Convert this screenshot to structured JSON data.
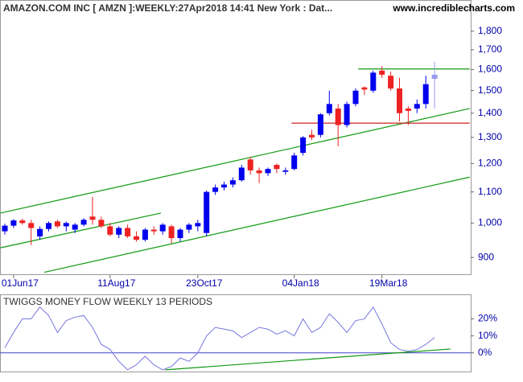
{
  "header": {
    "title": "AMAZON.COM INC [ AMZN ]:WEEKLY:27Apr2018 14:41 New York : Dat...",
    "site": "www.incrediblecharts.com"
  },
  "chart_data": [
    {
      "type": "candlestick",
      "log_scale": true,
      "categories": [
        null,
        "01Jun17",
        null,
        null,
        null,
        null,
        null,
        null,
        null,
        null,
        null,
        null,
        "11Aug17",
        null,
        null,
        null,
        null,
        null,
        null,
        null,
        null,
        null,
        "23Oct17",
        null,
        null,
        null,
        null,
        null,
        null,
        null,
        null,
        null,
        null,
        "04Jan18",
        null,
        null,
        null,
        null,
        null,
        null,
        null,
        null,
        null,
        "19Mar18",
        null,
        null,
        null,
        null,
        null,
        null
      ],
      "open": [
        975,
        992,
        1008,
        1000,
        960,
        982,
        1005,
        990,
        980,
        995,
        1020,
        1010,
        990,
        965,
        985,
        960,
        950,
        980,
        975,
        990,
        955,
        980,
        990,
        970,
        1100,
        1115,
        1125,
        1140,
        1215,
        1175,
        1165,
        1195,
        1170,
        1180,
        1240,
        1310,
        1310,
        1400,
        1420,
        1350,
        1440,
        1515,
        1500,
        1595,
        1570,
        1510,
        1420,
        1420,
        1440,
        1575
      ],
      "high": [
        998,
        1012,
        1014,
        1010,
        990,
        1005,
        1010,
        1005,
        1000,
        1015,
        1083,
        1020,
        1000,
        990,
        995,
        975,
        985,
        990,
        1000,
        995,
        985,
        1000,
        1010,
        1105,
        1125,
        1135,
        1150,
        1195,
        1225,
        1185,
        1185,
        1200,
        1185,
        1240,
        1305,
        1330,
        1400,
        1500,
        1440,
        1450,
        1510,
        1520,
        1595,
        1617,
        1590,
        1560,
        1430,
        1460,
        1570,
        1638
      ],
      "low": [
        965,
        985,
        995,
        935,
        950,
        975,
        985,
        975,
        970,
        990,
        995,
        985,
        960,
        955,
        955,
        945,
        945,
        965,
        965,
        940,
        945,
        970,
        975,
        960,
        1090,
        1105,
        1115,
        1135,
        1160,
        1130,
        1155,
        1165,
        1160,
        1175,
        1230,
        1290,
        1300,
        1390,
        1265,
        1340,
        1430,
        1480,
        1490,
        1560,
        1500,
        1365,
        1350,
        1400,
        1420,
        1420
      ],
      "close": [
        992,
        1008,
        1000,
        985,
        982,
        1000,
        990,
        1000,
        995,
        1010,
        1010,
        990,
        965,
        985,
        960,
        950,
        980,
        975,
        995,
        955,
        980,
        995,
        1000,
        1100,
        1115,
        1125,
        1140,
        1185,
        1175,
        1165,
        1180,
        1180,
        1175,
        1230,
        1300,
        1300,
        1395,
        1440,
        1350,
        1440,
        1500,
        1505,
        1585,
        1575,
        1510,
        1400,
        1410,
        1440,
        1530,
        1555
      ],
      "up_color": "#0000ee",
      "down_color": "#ee2222",
      "current_color": "#9999ee",
      "ylim": [
        857,
        1980
      ],
      "yticks": [
        {
          "value": 1800,
          "label": "1,800"
        },
        {
          "value": 1700,
          "label": "1,700"
        },
        {
          "value": 1600,
          "label": "1,600"
        },
        {
          "value": 1500,
          "label": "1,500"
        },
        {
          "value": 1400,
          "label": "1,400"
        },
        {
          "value": 1300,
          "label": "1,300"
        },
        {
          "value": 1200,
          "label": "1,200"
        },
        {
          "value": 1100,
          "label": "1,100"
        },
        {
          "value": 1000,
          "label": "1,000"
        },
        900
      ],
      "trendlines": [
        {
          "color": "#119911",
          "x": [
            -0.5,
            53
          ],
          "y": [
            1031,
            1420
          ]
        },
        {
          "color": "#119911",
          "x": [
            -0.5,
            17.8
          ],
          "y": [
            927,
            1031
          ]
        },
        {
          "color": "#119911",
          "x": [
            4.5,
            53
          ],
          "y": [
            860,
            1151
          ]
        },
        {
          "color": "#119911",
          "x": [
            40.3,
            53
          ],
          "y": [
            1603,
            1603
          ]
        },
        {
          "color": "#cc2222",
          "x": [
            32.7,
            53
          ],
          "y": [
            1358,
            1358
          ]
        }
      ]
    },
    {
      "type": "line",
      "title": "TWIGGS MONEY FLOW WEEKLY 13 PERIODS",
      "color": "#7777dd",
      "values": [
        3,
        12,
        20,
        20,
        27,
        22,
        12,
        19,
        21,
        22,
        15,
        5,
        2,
        -5,
        -10,
        -7,
        -2,
        -7,
        -10,
        -8,
        -3,
        -5,
        0,
        10,
        15,
        14,
        13,
        9,
        12,
        15,
        14,
        11,
        13,
        10,
        20,
        12,
        15,
        23,
        18,
        12,
        19,
        20,
        27,
        17,
        6,
        2,
        1,
        2,
        5,
        9
      ],
      "ylim": [
        -11,
        34
      ],
      "yticks": [
        {
          "value": 20,
          "label": "20%"
        },
        {
          "value": 10,
          "label": "10%"
        },
        {
          "value": 0,
          "label": "0%"
        }
      ],
      "zero_line_color": "#4444cc",
      "trendlines": [
        {
          "color": "#119911",
          "x": [
            18.3,
            50.8
          ],
          "y": [
            -10,
            2.3
          ]
        }
      ]
    }
  ]
}
